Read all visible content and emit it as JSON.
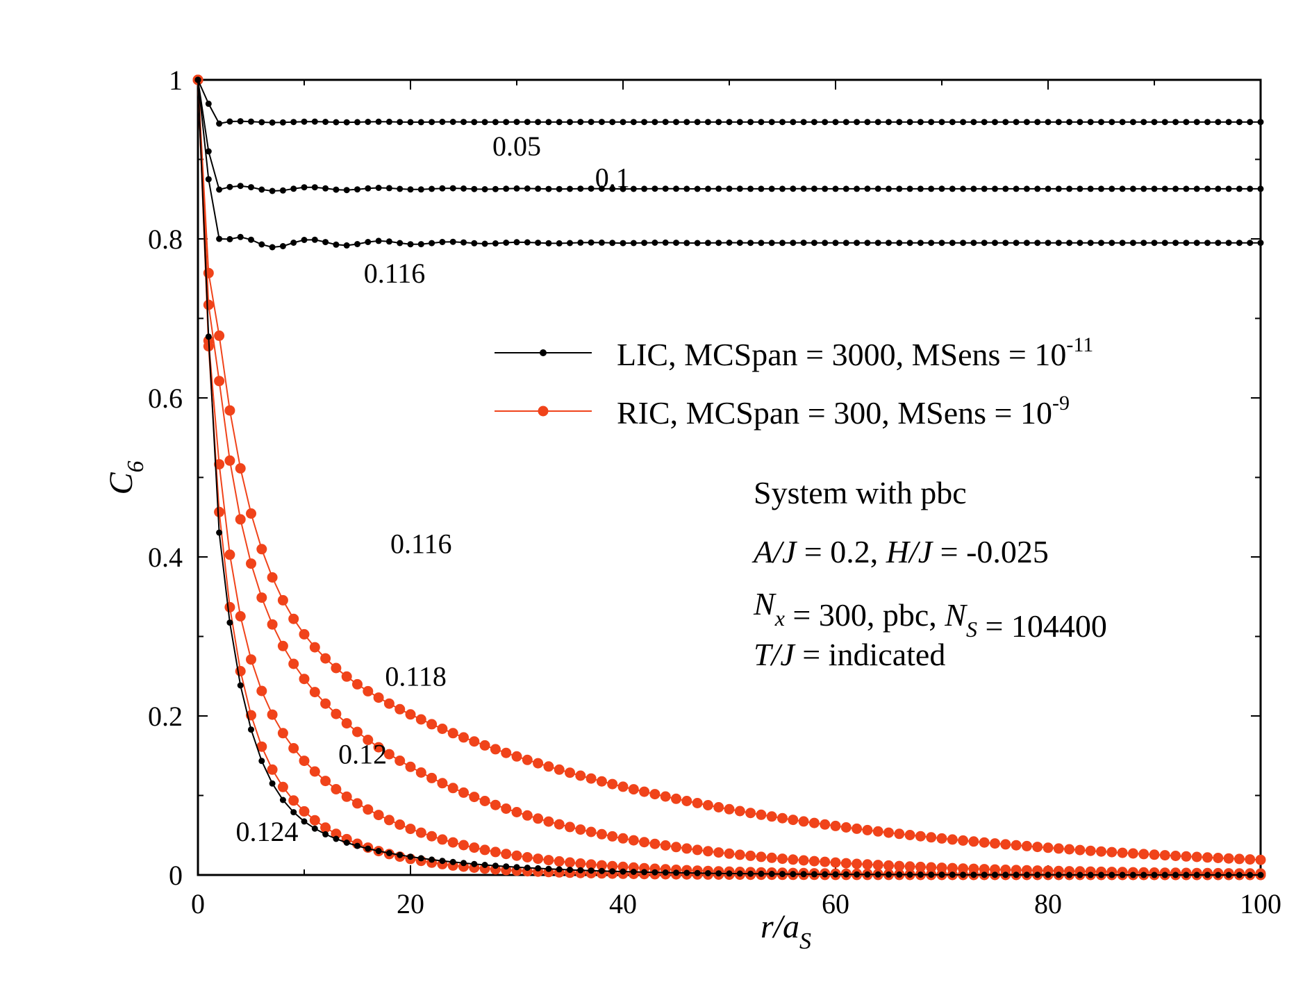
{
  "chart_data": {
    "type": "line",
    "xlabel": "r/a",
    "xlabel_sub": "S",
    "ylabel": "C",
    "ylabel_sub": "6",
    "xlim": [
      0,
      100
    ],
    "ylim": [
      0,
      1
    ],
    "x_ticks": [
      0,
      20,
      40,
      60,
      80,
      100
    ],
    "x_tick_labels": [
      "0",
      "20",
      "40",
      "60",
      "80",
      "100"
    ],
    "y_ticks": [
      0,
      0.2,
      0.4,
      0.6,
      0.8,
      1
    ],
    "y_tick_labels": [
      "0",
      "0.2",
      "0.4",
      "0.6",
      "0.8",
      "1"
    ],
    "grid": false,
    "legend": {
      "placement": "center-right",
      "entries": [
        {
          "text": "LIC, MCSpan = 3000, MSens = 10",
          "sup": "-11",
          "color": "#000000",
          "marker": "small-dot"
        },
        {
          "text": "RIC, MCSpan = 300, MSens = 10",
          "sup": "-9",
          "color": "#f0431a",
          "marker": "large-dot"
        }
      ]
    },
    "annotation_lines": [
      {
        "parts": [
          {
            "t": "System with pbc"
          }
        ]
      },
      {
        "parts": [
          {
            "t": "A/J",
            "i": true
          },
          {
            "t": " = 0.2,  "
          },
          {
            "t": "H/J",
            "i": true
          },
          {
            "t": " = -0.025"
          }
        ]
      },
      {
        "parts": [
          {
            "t": "N",
            "i": true
          },
          {
            "t": "x",
            "i": true,
            "sub": true
          },
          {
            "t": " = 300, pbc, "
          },
          {
            "t": "N",
            "i": true
          },
          {
            "t": "S",
            "i": true,
            "sub": true
          },
          {
            "t": " = 104400"
          }
        ]
      },
      {
        "parts": [
          {
            "t": "T/J",
            "i": true
          },
          {
            "t": " = indicated"
          }
        ]
      }
    ],
    "series": [
      {
        "group": "LIC",
        "label": "0.05",
        "color": "#000000",
        "model": {
          "type": "plateau",
          "v1": 0.97,
          "v2": 0.945,
          "vinf": 0.947,
          "ripple": 0.001
        }
      },
      {
        "group": "LIC",
        "label": "0.1",
        "color": "#000000",
        "model": {
          "type": "plateau",
          "v1": 0.91,
          "v2": 0.862,
          "vinf": 0.863,
          "ripple": 0.004
        }
      },
      {
        "group": "LIC",
        "label": "0.116",
        "color": "#000000",
        "model": {
          "type": "plateau",
          "v1": 0.875,
          "v2": 0.8,
          "vinf": 0.795,
          "ripple": 0.008
        }
      },
      {
        "group": "LIC",
        "label": "0.124",
        "color": "#000000",
        "model": {
          "type": "decay",
          "v1": 0.677,
          "a": 0.71,
          "l1": 2.6,
          "b": 0.12,
          "l2": 12
        }
      },
      {
        "group": "RIC",
        "label": "0.116",
        "color": "#f0431a",
        "model": {
          "type": "decay",
          "v1": 0.757,
          "a": 0.6,
          "l1": 3.5,
          "b": 0.36,
          "l2": 34
        }
      },
      {
        "group": "RIC",
        "label": "0.118",
        "color": "#f0431a",
        "model": {
          "type": "decay",
          "v1": 0.717,
          "a": 0.55,
          "l1": 2.7,
          "b": 0.4,
          "l2": 18.5
        }
      },
      {
        "group": "RIC",
        "label": "0.12",
        "color": "#f0431a",
        "model": {
          "type": "decay",
          "v1": 0.672,
          "a": 0.62,
          "l1": 2.1,
          "b": 0.33,
          "l2": 11.5
        }
      },
      {
        "group": "RIC",
        "label": "0.124",
        "color": "#f0431a",
        "model": {
          "type": "decay",
          "v1": 0.665,
          "a": 0.64,
          "l1": 2.05,
          "b": 0.28,
          "l2": 7.6
        }
      }
    ],
    "curve_labels": [
      {
        "text": "0.05",
        "x": 30,
        "y": 0.905
      },
      {
        "text": "0.1",
        "x": 39,
        "y": 0.865
      },
      {
        "text": "0.116",
        "x": 18.5,
        "y": 0.745
      },
      {
        "text": "0.116",
        "x": 21,
        "y": 0.405
      },
      {
        "text": "0.118",
        "x": 20.5,
        "y": 0.238
      },
      {
        "text": "0.12",
        "x": 15.5,
        "y": 0.14
      },
      {
        "text": "0.124",
        "x": 6.5,
        "y": 0.043
      }
    ]
  }
}
